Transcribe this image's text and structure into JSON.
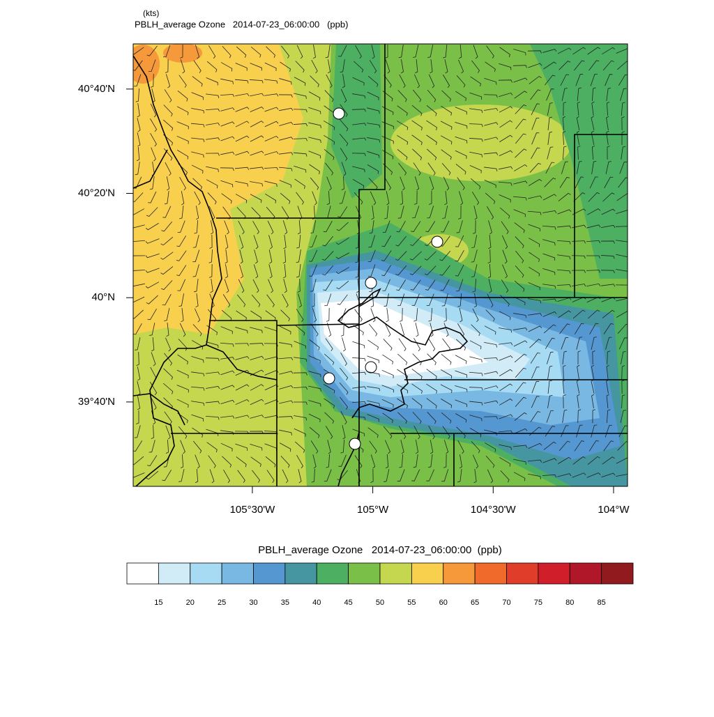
{
  "header": {
    "units": "(kts)",
    "title": "PBLH_average Ozone   2014-07-23_06:00:00   (ppb)"
  },
  "map": {
    "lon_range": [
      -105.995,
      -103.942
    ],
    "lat_range": [
      39.397,
      40.811
    ],
    "lon_ticks": [
      {
        "value": -105.5,
        "label": "105°30'W"
      },
      {
        "value": -105,
        "label": "105°W"
      },
      {
        "value": -104.5,
        "label": "104°30'W"
      },
      {
        "value": -104,
        "label": "104°W"
      }
    ],
    "lat_ticks": [
      {
        "value": 40.6667,
        "label": "40°40'N"
      },
      {
        "value": 40.3333,
        "label": "40°20'N"
      },
      {
        "value": 40,
        "label": "40°N"
      },
      {
        "value": 39.6667,
        "label": "39°40'N"
      }
    ]
  },
  "colorbar": {
    "title": "PBLH_average Ozone   2014-07-23_06:00:00  (ppb)",
    "levels": [
      15,
      20,
      25,
      30,
      35,
      40,
      45,
      50,
      55,
      60,
      65,
      70,
      75,
      80,
      85
    ],
    "colors": [
      "#ffffff",
      "#d2ecf7",
      "#a6dbf3",
      "#79b8e2",
      "#5597d1",
      "#4596a0",
      "#4caf62",
      "#7abf48",
      "#c5d64f",
      "#f9d04e",
      "#f5993b",
      "#f06a2b",
      "#e03e2b",
      "#d01f2b",
      "#b0182a",
      "#901a1e"
    ]
  }
}
